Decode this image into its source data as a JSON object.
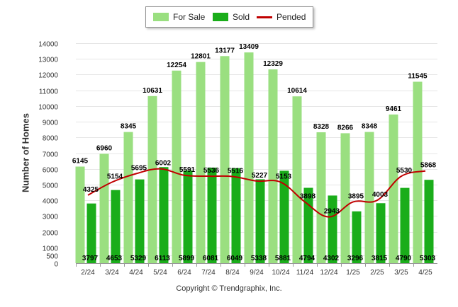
{
  "chart_data": {
    "type": "bar",
    "categories": [
      "2/24",
      "3/24",
      "4/24",
      "5/24",
      "6/24",
      "7/24",
      "8/24",
      "9/24",
      "10/24",
      "11/24",
      "12/24",
      "1/25",
      "2/25",
      "3/25",
      "4/25"
    ],
    "series": [
      {
        "name": "For Sale",
        "type": "bar",
        "color": "#9adf80",
        "values": [
          6145,
          6960,
          8345,
          10631,
          12254,
          12801,
          13177,
          13409,
          12329,
          10614,
          8328,
          8266,
          8348,
          9461,
          11545
        ]
      },
      {
        "name": "Sold",
        "type": "bar",
        "color": "#1aad1a",
        "values": [
          3797,
          4653,
          5329,
          6113,
          5899,
          6081,
          6049,
          5338,
          5881,
          4794,
          4302,
          3296,
          3815,
          4790,
          5303
        ]
      },
      {
        "name": "Pended",
        "type": "line",
        "color": "#c00000",
        "values": [
          4325,
          5154,
          5695,
          6002,
          5591,
          5536,
          5516,
          5227,
          5153,
          3898,
          2943,
          3895,
          4003,
          5530,
          5868
        ]
      }
    ],
    "ylabel": "Number of Homes",
    "ylim": [
      0,
      14000
    ],
    "yticks": [
      0,
      500,
      1000,
      2000,
      3000,
      4000,
      5000,
      6000,
      7000,
      8000,
      9000,
      10000,
      11000,
      12000,
      13000,
      14000
    ],
    "grid": true,
    "legend_position": "top-center"
  },
  "footer": {
    "credit": "Copyright © Trendgraphix, Inc."
  }
}
